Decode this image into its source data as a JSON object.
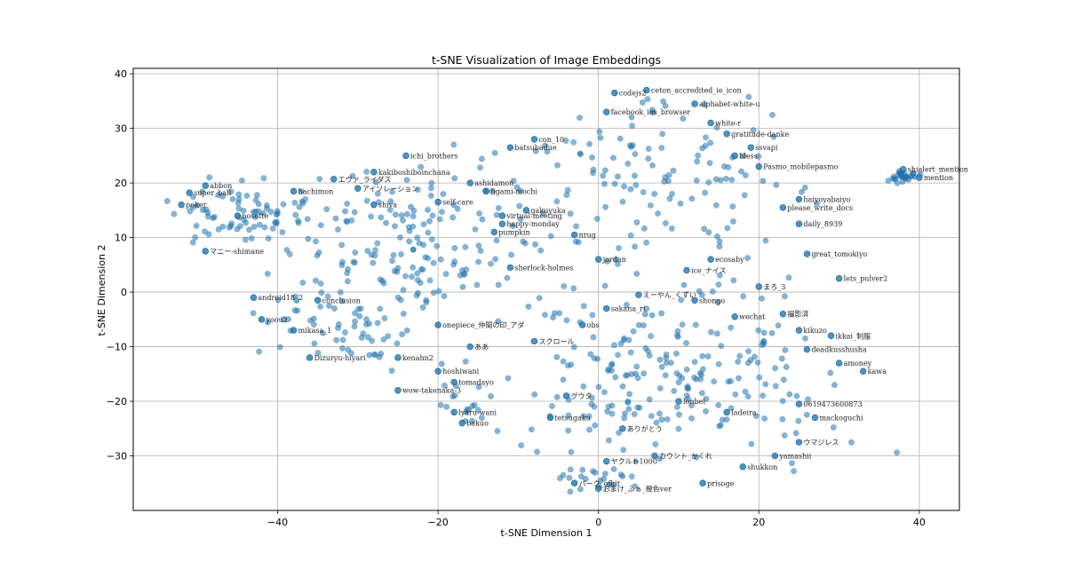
{
  "chart_data": {
    "type": "scatter",
    "title": "t-SNE Visualization of Image Embeddings",
    "xlabel": "t-SNE Dimension 1",
    "ylabel": "t-SNE Dimension 2",
    "xlim": [
      -58,
      45
    ],
    "ylim": [
      -40,
      41
    ],
    "xticks": [
      -40,
      -20,
      0,
      20,
      40
    ],
    "yticks": [
      -30,
      -20,
      -10,
      0,
      10,
      20,
      30,
      40
    ],
    "xtick_labels": [
      "−40",
      "−20",
      "0",
      "20",
      "40"
    ],
    "ytick_labels": [
      "−30",
      "−20",
      "−10",
      "0",
      "10",
      "20",
      "30",
      "40"
    ],
    "grid": true,
    "marker_color": "#1f77b4",
    "marker_alpha": 0.55,
    "points": [
      {
        "x": -49,
        "y": 19.5,
        "label": "abbon"
      },
      {
        "x": -51,
        "y": 18.2,
        "label": "super_ball"
      },
      {
        "x": -52,
        "y": 16,
        "label": "poker"
      },
      {
        "x": -45,
        "y": 14,
        "label": "nosette"
      },
      {
        "x": -49,
        "y": 7.5,
        "label": "マニー-shimane"
      },
      {
        "x": -38,
        "y": 18.5,
        "label": "hachimon"
      },
      {
        "x": -33,
        "y": 20.7,
        "label": "エヴァ_ライダス"
      },
      {
        "x": -30,
        "y": 19,
        "label": "アイソレーション"
      },
      {
        "x": -28,
        "y": 22,
        "label": "kakiboshiboinchana"
      },
      {
        "x": -28,
        "y": 16,
        "label": "shiva"
      },
      {
        "x": -24,
        "y": 25,
        "label": "ichi_brothers"
      },
      {
        "x": -20,
        "y": 16.5,
        "label": "self-care"
      },
      {
        "x": -16,
        "y": 20,
        "label": "ashidamon"
      },
      {
        "x": -14,
        "y": 18.5,
        "label": "figami-mochi"
      },
      {
        "x": -12,
        "y": 14,
        "label": "virtual-meeting"
      },
      {
        "x": -12,
        "y": 12.5,
        "label": "happy-monday"
      },
      {
        "x": -13,
        "y": 11,
        "label": "pumpkin"
      },
      {
        "x": -11,
        "y": 26.5,
        "label": "batsubadue"
      },
      {
        "x": -8,
        "y": 28,
        "label": "con_10"
      },
      {
        "x": -9,
        "y": 15,
        "label": "gakuyuka"
      },
      {
        "x": 2,
        "y": 36.5,
        "label": "codejs2"
      },
      {
        "x": 6,
        "y": 37,
        "label": "ceton_accredited_ie_icon"
      },
      {
        "x": 1,
        "y": 33,
        "label": "facebook_ios_browser"
      },
      {
        "x": 12,
        "y": 34.5,
        "label": "alphabet-white-u"
      },
      {
        "x": 14,
        "y": 31,
        "label": "white-r"
      },
      {
        "x": 16,
        "y": 29,
        "label": "gratitude-danke"
      },
      {
        "x": 19,
        "y": 26.5,
        "label": "ssvapi"
      },
      {
        "x": 17,
        "y": 25,
        "label": "bless"
      },
      {
        "x": 20,
        "y": 23,
        "label": "Pasmo_mobilepasmo"
      },
      {
        "x": 25,
        "y": 17,
        "label": "haiyoyabaiyo"
      },
      {
        "x": 23,
        "y": 15.5,
        "label": "please_write_docs"
      },
      {
        "x": 25,
        "y": 12.5,
        "label": "daily_8939"
      },
      {
        "x": 26,
        "y": 7,
        "label": "great_tomokiyo"
      },
      {
        "x": 30,
        "y": 2.5,
        "label": "lets_pulver2"
      },
      {
        "x": 38,
        "y": 22.5,
        "label": "shialert_mention"
      },
      {
        "x": 40,
        "y": 21,
        "label": "mention"
      },
      {
        "x": -43,
        "y": -1,
        "label": "android18_2"
      },
      {
        "x": -35,
        "y": -1.5,
        "label": "conclusion"
      },
      {
        "x": -42,
        "y": -5,
        "label": "yoou2"
      },
      {
        "x": -38,
        "y": -7,
        "label": "mikasa_1"
      },
      {
        "x": -36,
        "y": -12,
        "label": "Dizuryu-hiyari"
      },
      {
        "x": -25,
        "y": -12,
        "label": "kenahn2"
      },
      {
        "x": -25,
        "y": -18,
        "label": "wow-takenaka-3"
      },
      {
        "x": -20,
        "y": -14.5,
        "label": "hoshiwani"
      },
      {
        "x": -18,
        "y": -16.5,
        "label": "tomadayo"
      },
      {
        "x": -20,
        "y": -6,
        "label": "onepiece_仲間の印_アダ"
      },
      {
        "x": -16,
        "y": -10,
        "label": "ああ"
      },
      {
        "x": -18,
        "y": -22,
        "label": "lyaru-wani"
      },
      {
        "x": -17,
        "y": -24,
        "label": "bakuo"
      },
      {
        "x": -11,
        "y": 4.5,
        "label": "sherlock-holmes"
      },
      {
        "x": -8,
        "y": -9,
        "label": "スクロール"
      },
      {
        "x": -3,
        "y": 10.5,
        "label": "nrug"
      },
      {
        "x": 0,
        "y": 6,
        "label": "jordan"
      },
      {
        "x": 1,
        "y": -3,
        "label": "sakana_ri"
      },
      {
        "x": -2,
        "y": -6,
        "label": "obs"
      },
      {
        "x": 5,
        "y": -0.5,
        "label": "えーやん_くずい"
      },
      {
        "x": 11,
        "y": 4,
        "label": "ice_ナイス"
      },
      {
        "x": 14,
        "y": 6,
        "label": "ecosaby"
      },
      {
        "x": 12,
        "y": -1.5,
        "label": "shongo"
      },
      {
        "x": 17,
        "y": -4.5,
        "label": "wechat"
      },
      {
        "x": 20,
        "y": 1,
        "label": "まろ_3"
      },
      {
        "x": 23,
        "y": -4,
        "label": "撮影済"
      },
      {
        "x": 25,
        "y": -7,
        "label": "kikuzo"
      },
      {
        "x": 29,
        "y": -8,
        "label": "ikkai_制服"
      },
      {
        "x": 26,
        "y": -10.5,
        "label": "deadkusshusha"
      },
      {
        "x": 30,
        "y": -13,
        "label": "amoney"
      },
      {
        "x": 33,
        "y": -14.5,
        "label": "kawa"
      },
      {
        "x": 25,
        "y": -20.5,
        "label": "0619473600873"
      },
      {
        "x": 27,
        "y": -23,
        "label": "mackoguchi"
      },
      {
        "x": 25,
        "y": -27.5,
        "label": "ウマジレス"
      },
      {
        "x": 22,
        "y": -30,
        "label": "yamashii"
      },
      {
        "x": 10,
        "y": -20,
        "label": "lonbei"
      },
      {
        "x": 3,
        "y": -25,
        "label": "ありがとう"
      },
      {
        "x": 1,
        "y": -31,
        "label": "ヤクルト1000"
      },
      {
        "x": -3,
        "y": -35,
        "label": "パーク_ofkit"
      },
      {
        "x": 0,
        "y": -36,
        "label": "おまけ_ふぁ_橙色ver"
      },
      {
        "x": 13,
        "y": -35,
        "label": "prisoge"
      },
      {
        "x": 18,
        "y": -32,
        "label": "shukkon"
      },
      {
        "x": 7,
        "y": -30,
        "label": "カウント_かくれ"
      },
      {
        "x": -6,
        "y": -23,
        "label": "tetsugaku"
      },
      {
        "x": -4,
        "y": -19,
        "label": "グウタ"
      },
      {
        "x": 16,
        "y": -22,
        "label": "ladeira"
      }
    ],
    "extra_points": 720
  }
}
